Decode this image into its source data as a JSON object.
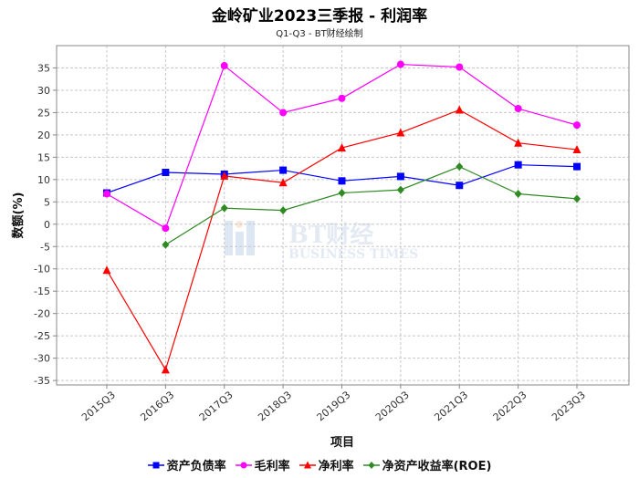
{
  "title": "金岭矿业2023三季报 - 利润率",
  "subtitle": "Q1-Q3 - BT财经绘制",
  "watermark": {
    "brand": "BT财经",
    "sub": "BUSINESS TIMES"
  },
  "chart_data": {
    "type": "line",
    "xlabel": "项目",
    "ylabel": "数额(%)",
    "ylim": [
      -36,
      40
    ],
    "yticks": [
      -35,
      -30,
      -25,
      -20,
      -15,
      -10,
      -5,
      0,
      5,
      10,
      15,
      20,
      25,
      30,
      35
    ],
    "grid": true,
    "legend_position": "bottom",
    "categories": [
      "2015Q3",
      "2016Q3",
      "2017Q3",
      "2018Q3",
      "2019Q3",
      "2020Q3",
      "2021Q3",
      "2022Q3",
      "2023Q3"
    ],
    "series": [
      {
        "name": "资产负债率",
        "color": "#0000ff",
        "marker": "square",
        "values": [
          7.0,
          11.6,
          11.2,
          12.1,
          9.7,
          10.7,
          8.7,
          13.3,
          12.9
        ]
      },
      {
        "name": "毛利率",
        "color": "#ff00ff",
        "marker": "circle",
        "values": [
          6.8,
          -0.9,
          35.5,
          25.0,
          28.2,
          35.8,
          35.2,
          25.9,
          22.2
        ]
      },
      {
        "name": "净利率",
        "color": "#ff0000",
        "marker": "triangle",
        "values": [
          -10.3,
          -32.6,
          10.8,
          9.3,
          17.1,
          20.5,
          25.6,
          18.2,
          16.7
        ]
      },
      {
        "name": "净资产收益率(ROE)",
        "color": "#2e8b22",
        "marker": "diamond",
        "values": [
          null,
          -4.6,
          3.6,
          3.1,
          7.0,
          7.7,
          12.9,
          6.8,
          5.7
        ]
      }
    ]
  }
}
